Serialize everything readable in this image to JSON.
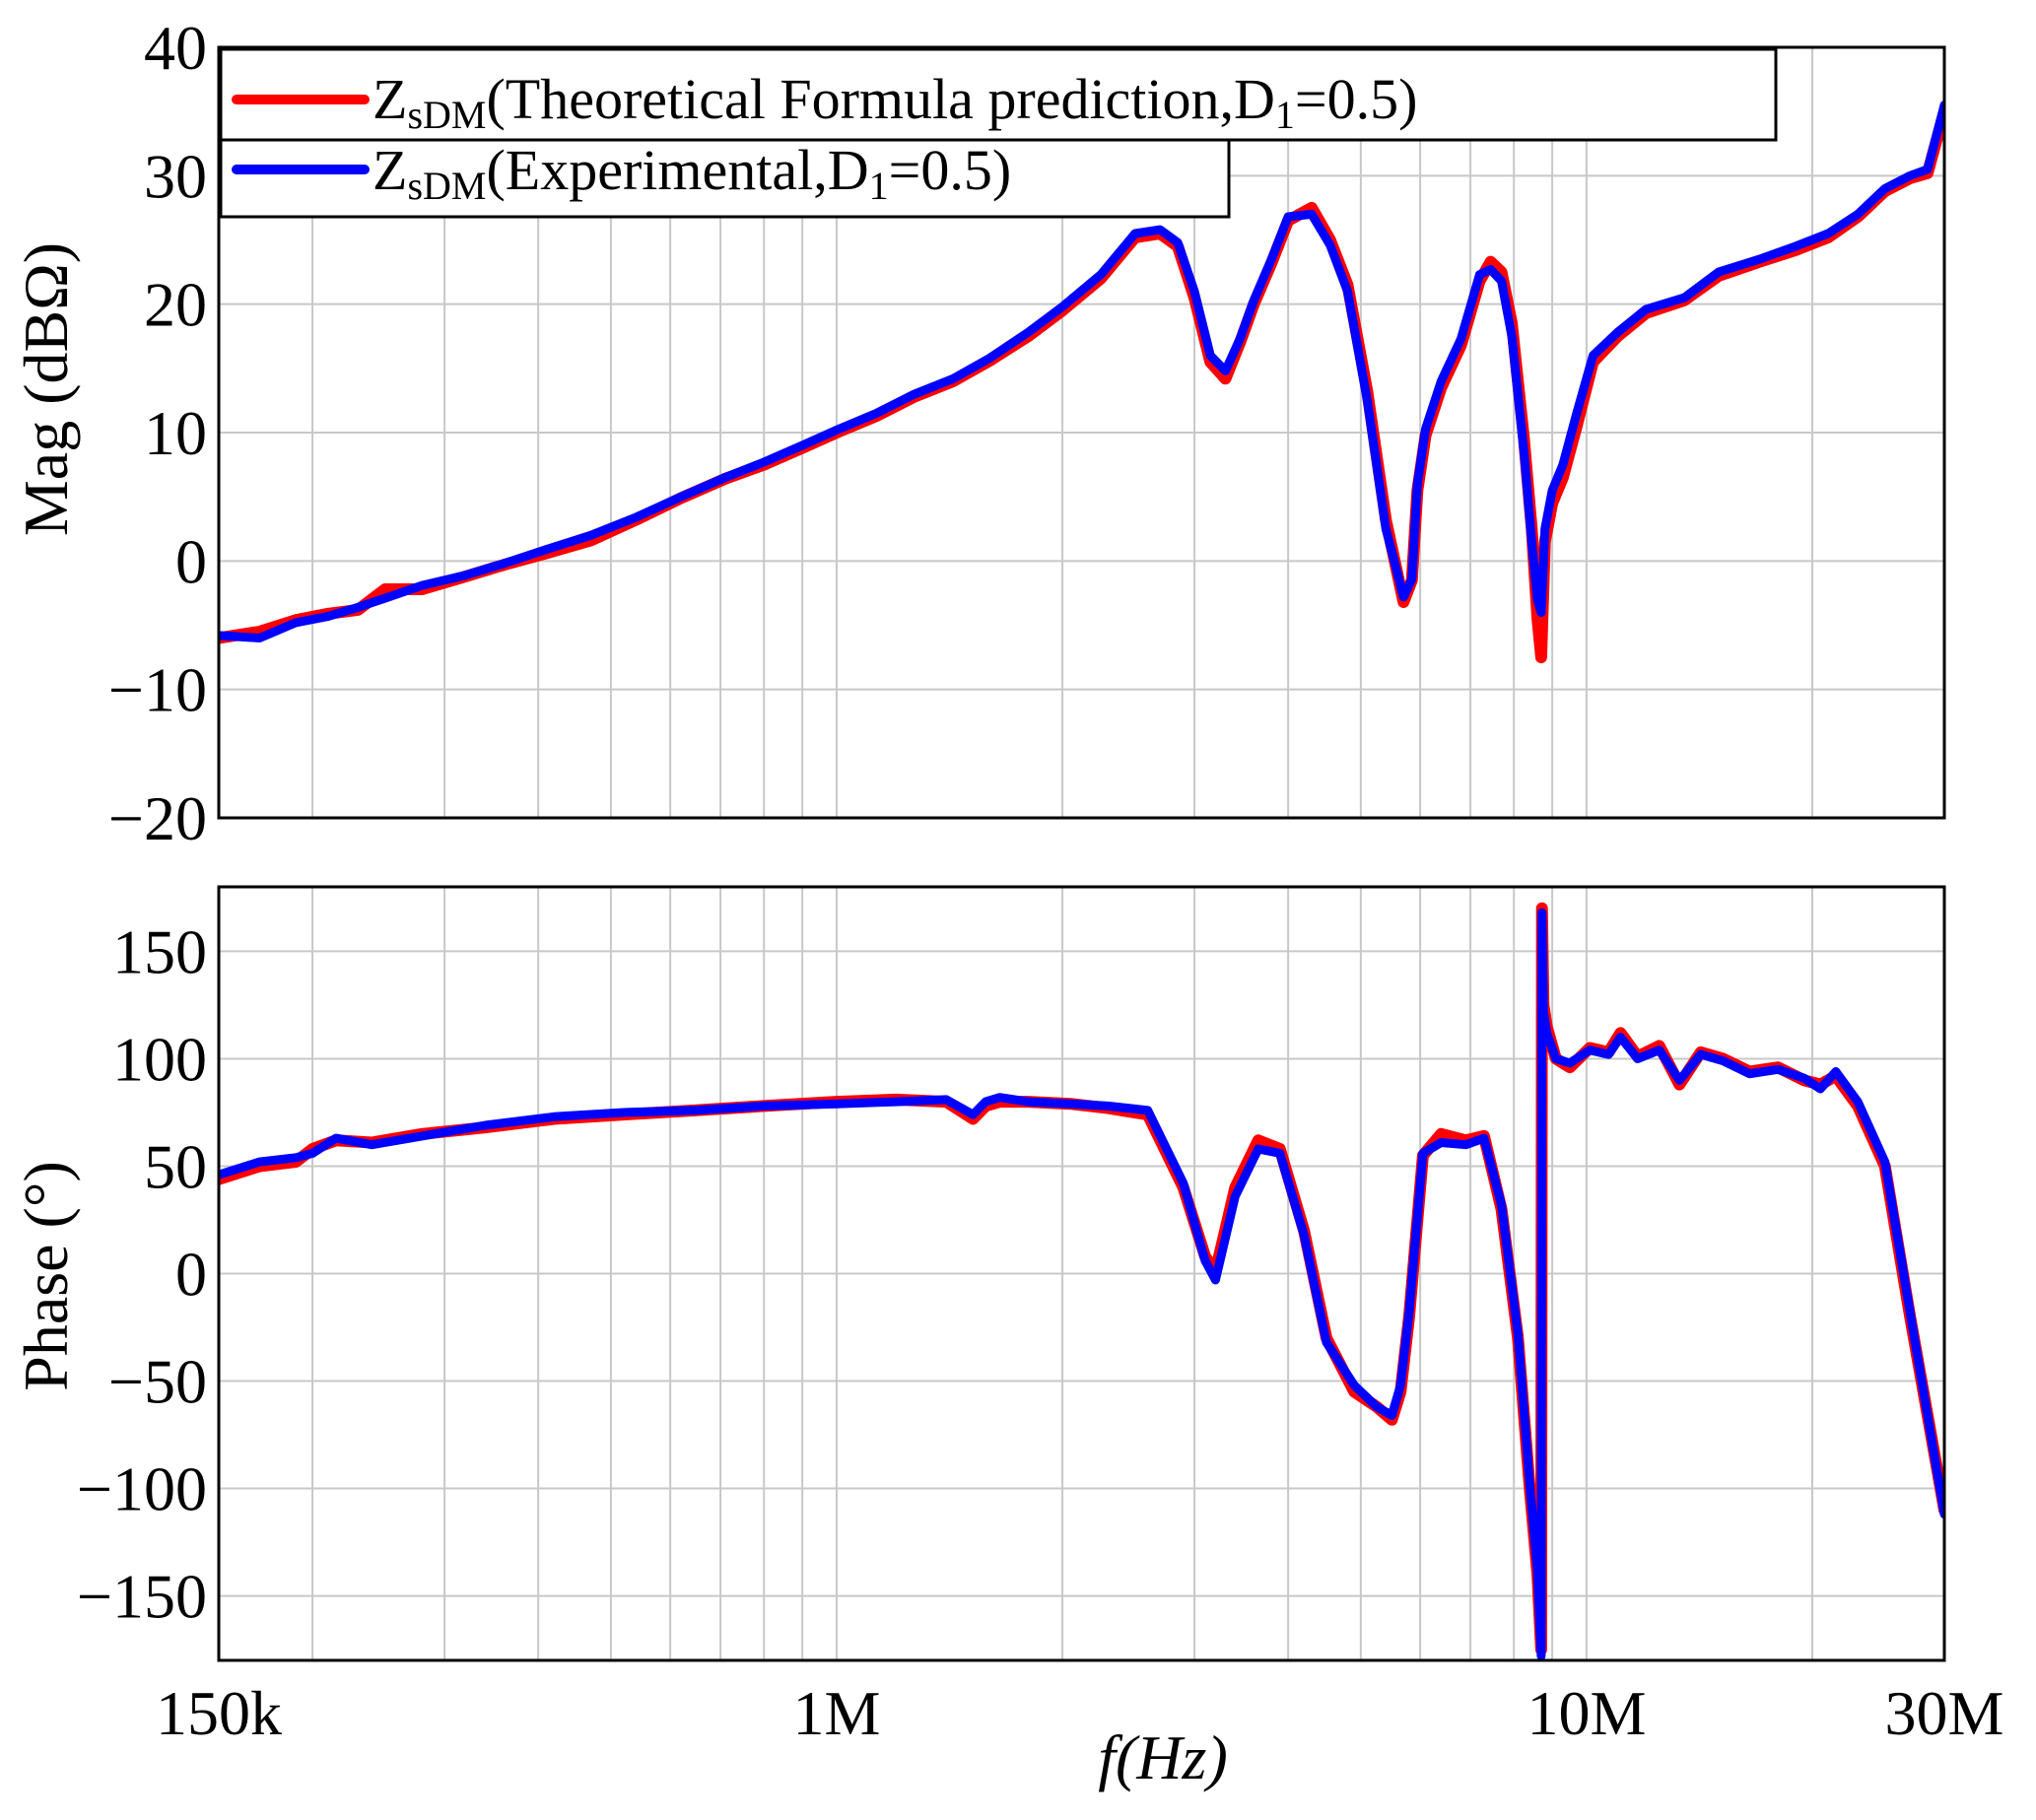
{
  "chart_data": [
    {
      "type": "line",
      "panel": "magnitude",
      "ylabel": "Mag (dBΩ)",
      "xscale": "log",
      "xlim": [
        150000,
        30000000
      ],
      "ylim": [
        -20,
        40
      ],
      "yticks": [
        -20,
        -10,
        0,
        10,
        20,
        30,
        40
      ],
      "ytick_labels": [
        "−20",
        "−10",
        "0",
        "10",
        "20",
        "30",
        "40"
      ],
      "grid": true,
      "legend": {
        "placement": "top-left",
        "entries": [
          {
            "main": "Z",
            "sub": "sDM",
            "rest": "(Theoretical Formula prediction,D",
            "sub2": "1",
            "rest2": "=0.5)",
            "color": "#ff0000"
          },
          {
            "main": "Z",
            "sub": "sDM",
            "rest": "(Experimental,D",
            "sub2": "1",
            "rest2": "=0.5)",
            "color": "#0000ff"
          }
        ]
      },
      "series": [
        {
          "color": "#ff0000",
          "x": [
            150000,
            170000,
            190000,
            210000,
            230000,
            250000,
            280000,
            320000,
            360000,
            410000,
            470000,
            540000,
            620000,
            710000,
            800000,
            900000,
            1000000,
            1130000,
            1270000,
            1430000,
            1600000,
            1800000,
            2000000,
            2250000,
            2500000,
            2700000,
            2850000,
            3000000,
            3150000,
            3300000,
            3450000,
            3600000,
            3800000,
            4000000,
            4300000,
            4550000,
            4800000,
            5100000,
            5400000,
            5700000,
            5850000,
            5950000,
            6100000,
            6400000,
            6800000,
            7200000,
            7450000,
            7700000,
            7950000,
            8250000,
            8450000,
            8600000,
            8700000,
            8800000,
            9000000,
            9300000,
            9700000,
            10200000,
            11000000,
            12000000,
            13500000,
            15000000,
            17000000,
            19000000,
            21000000,
            23000000,
            25000000,
            27000000,
            28500000,
            30000000
          ],
          "values": [
            -6,
            -5.5,
            -4.6,
            -4.1,
            -3.8,
            -2.2,
            -2.2,
            -1.2,
            -0.3,
            0.6,
            1.6,
            3.2,
            4.9,
            6.4,
            7.5,
            8.8,
            10,
            11.3,
            12.8,
            14,
            15.6,
            17.5,
            19.5,
            22,
            25.2,
            25.5,
            24.5,
            20.5,
            15.5,
            14.2,
            17,
            20,
            23.2,
            26.5,
            27.5,
            25,
            21.5,
            13.2,
            3.2,
            -3.2,
            -1.5,
            5.5,
            9.8,
            13.5,
            16.8,
            21.8,
            23.3,
            22.5,
            18.5,
            9.5,
            2.5,
            -4.5,
            -7.5,
            1.5,
            4.5,
            6.5,
            10.5,
            15.5,
            17.5,
            19.3,
            20.3,
            22.2,
            23.3,
            24.2,
            25.2,
            26.8,
            28.8,
            29.8,
            30.2,
            35
          ]
        },
        {
          "color": "#0000ff",
          "x": [
            150000,
            170000,
            190000,
            210000,
            230000,
            250000,
            280000,
            320000,
            360000,
            410000,
            470000,
            540000,
            620000,
            710000,
            800000,
            900000,
            1000000,
            1130000,
            1270000,
            1430000,
            1600000,
            1800000,
            2000000,
            2250000,
            2500000,
            2700000,
            2850000,
            3000000,
            3150000,
            3300000,
            3450000,
            3600000,
            3800000,
            4000000,
            4300000,
            4550000,
            4800000,
            5100000,
            5400000,
            5700000,
            5850000,
            5950000,
            6100000,
            6400000,
            6800000,
            7200000,
            7450000,
            7700000,
            7950000,
            8250000,
            8450000,
            8600000,
            8700000,
            8800000,
            9000000,
            9300000,
            9700000,
            10200000,
            11000000,
            12000000,
            13500000,
            15000000,
            17000000,
            19000000,
            21000000,
            23000000,
            25000000,
            27000000,
            28500000,
            30000000
          ],
          "values": [
            -5.8,
            -6,
            -4.8,
            -4.3,
            -3.6,
            -2.9,
            -1.9,
            -1.1,
            -0.2,
            0.9,
            2,
            3.4,
            5,
            6.5,
            7.7,
            9,
            10.2,
            11.5,
            13,
            14.2,
            15.8,
            17.8,
            19.8,
            22.3,
            25.5,
            25.8,
            24.8,
            21,
            16,
            14.8,
            17.3,
            20.3,
            23.5,
            26.8,
            27,
            24.6,
            21,
            12.5,
            2.5,
            -2.8,
            -1.4,
            6,
            10.3,
            14,
            17.3,
            22.3,
            22.7,
            21.8,
            17.5,
            8.5,
            1.5,
            -3,
            -4,
            2.5,
            5.5,
            7.5,
            11.5,
            16,
            17.8,
            19.6,
            20.5,
            22.5,
            23.5,
            24.5,
            25.5,
            27,
            29,
            30,
            30.5,
            35.5
          ]
        }
      ]
    },
    {
      "type": "line",
      "panel": "phase",
      "ylabel": "Phase (°)",
      "xlabel": "f(Hz)",
      "xscale": "log",
      "xlim": [
        150000,
        30000000
      ],
      "ylim": [
        -180,
        180
      ],
      "yticks": [
        -150,
        -100,
        -50,
        0,
        50,
        100,
        150
      ],
      "ytick_labels": [
        "−150",
        "−100",
        "−50",
        "0",
        "50",
        "100",
        "150"
      ],
      "xtick_labels": [
        {
          "value": 150000,
          "label": "150k"
        },
        {
          "value": 1000000,
          "label": "1M"
        },
        {
          "value": 10000000,
          "label": "10M"
        },
        {
          "value": 30000000,
          "label": "30M"
        }
      ],
      "grid": true,
      "series": [
        {
          "color": "#ff0000",
          "x": [
            150000,
            170000,
            190000,
            200000,
            215000,
            240000,
            280000,
            340000,
            420000,
            520000,
            650000,
            800000,
            1000000,
            1200000,
            1400000,
            1520000,
            1580000,
            1650000,
            1800000,
            2050000,
            2300000,
            2600000,
            2900000,
            3100000,
            3200000,
            3400000,
            3650000,
            3900000,
            4200000,
            4500000,
            4900000,
            5250000,
            5500000,
            5650000,
            5800000,
            6050000,
            6400000,
            6900000,
            7300000,
            7700000,
            8100000,
            8400000,
            8600000,
            8700000,
            8720000,
            8760000,
            8850000,
            9100000,
            9500000,
            10100000,
            10700000,
            11100000,
            11700000,
            12500000,
            13300000,
            14200000,
            15200000,
            16500000,
            18000000,
            19500000,
            20500000,
            21500000,
            23000000,
            25000000,
            27000000,
            30000000
          ],
          "values": [
            44,
            50,
            52,
            58,
            62,
            61,
            65,
            68,
            72,
            74,
            76,
            78,
            80,
            81,
            80,
            72,
            78,
            80,
            80,
            79,
            77,
            74,
            40,
            8,
            1,
            40,
            62,
            58,
            20,
            -30,
            -55,
            -62,
            -68,
            -55,
            -20,
            55,
            65,
            62,
            64,
            30,
            -30,
            -100,
            -140,
            -175,
            170,
            125,
            115,
            100,
            96,
            105,
            103,
            112,
            101,
            106,
            88,
            103,
            100,
            94,
            96,
            90,
            88,
            92,
            78,
            50,
            -20,
            -110
          ]
        },
        {
          "color": "#0000ff",
          "x": [
            150000,
            170000,
            190000,
            200000,
            215000,
            240000,
            280000,
            340000,
            420000,
            520000,
            650000,
            800000,
            1000000,
            1200000,
            1400000,
            1520000,
            1580000,
            1650000,
            1800000,
            2050000,
            2300000,
            2600000,
            2900000,
            3100000,
            3200000,
            3400000,
            3650000,
            3900000,
            4200000,
            4500000,
            4900000,
            5250000,
            5500000,
            5650000,
            5800000,
            6050000,
            6400000,
            6900000,
            7300000,
            7700000,
            8100000,
            8400000,
            8600000,
            8700000,
            8720000,
            8760000,
            8850000,
            9100000,
            9500000,
            10100000,
            10700000,
            11100000,
            11700000,
            12500000,
            13300000,
            14200000,
            15200000,
            16500000,
            18000000,
            19500000,
            20500000,
            21500000,
            23000000,
            25000000,
            27000000,
            30000000
          ],
          "values": [
            46,
            52,
            54,
            56,
            63,
            60,
            64,
            69,
            73,
            75,
            76,
            78,
            79,
            80,
            81,
            74,
            80,
            82,
            80,
            79,
            78,
            76,
            42,
            6,
            -3,
            36,
            58,
            56,
            18,
            -32,
            -52,
            -62,
            -66,
            -52,
            -18,
            56,
            61,
            60,
            63,
            32,
            -28,
            -98,
            -138,
            -178,
            168,
            122,
            112,
            100,
            98,
            104,
            102,
            110,
            100,
            104,
            90,
            102,
            99,
            93,
            95,
            91,
            86,
            94,
            80,
            52,
            -18,
            -112
          ]
        }
      ]
    }
  ]
}
